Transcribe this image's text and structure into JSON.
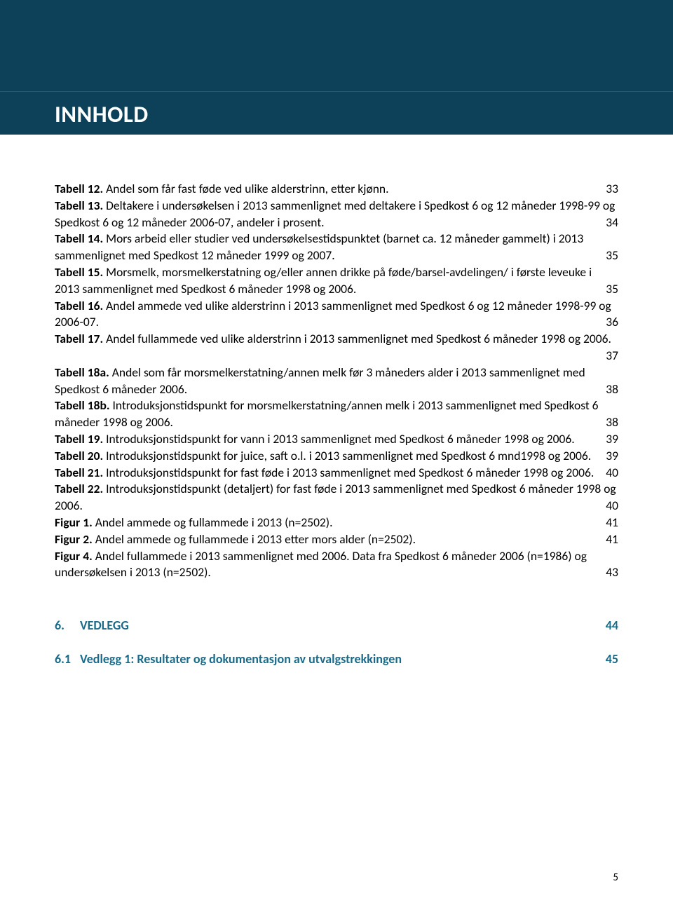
{
  "colors": {
    "header_bg": "#0d4159",
    "header_line": "#265a70",
    "text": "#000000",
    "accent": "#1a6a89",
    "page_bg": "#ffffff"
  },
  "typography": {
    "body_family": "Calibri, Arial, sans-serif",
    "body_size_pt": 13,
    "header_size_pt": 25,
    "line_height": 1.36
  },
  "header": {
    "title": "INNHOLD"
  },
  "toc": [
    {
      "label": "Tabell 12.",
      "desc": " Andel som får fast føde ved ulike alderstrinn, etter kjønn.",
      "pg": "33"
    },
    {
      "label": "Tabell 13.",
      "desc": " Deltakere i undersøkelsen i 2013 sammenlignet med deltakere i Spedkost 6 og 12 måneder 1998-99 og Spedkost 6 og 12 måneder 2006-07, andeler i prosent.",
      "pg": "34"
    },
    {
      "label": "Tabell 14.",
      "desc": " Mors arbeid eller studier ved undersøkelsestidspunktet (barnet ca. 12 måneder gammelt) i 2013 sammenlignet med Spedkost 12 måneder 1999 og 2007.",
      "pg": "35"
    },
    {
      "label": "Tabell 15.",
      "desc": " Morsmelk, morsmelkerstatning og/eller annen drikke på føde/barsel-avdelingen/ i første leveuke i 2013 sammenlignet med Spedkost 6 måneder 1998 og 2006.",
      "pg": "35"
    },
    {
      "label": "Tabell 16.",
      "desc": " Andel ammede ved ulike alderstrinn i 2013 sammenlignet med Spedkost 6 og 12 måneder 1998-99 og 2006-07.",
      "pg": "36"
    },
    {
      "label": "Tabell 17.",
      "desc": " Andel fullammede ved ulike alderstrinn i 2013 sammenlignet med Spedkost 6 måneder 1998 og 2006.",
      "pg": "37"
    },
    {
      "label": "Tabell 18a.",
      "desc": " Andel som får morsmelkerstatning/annen melk før 3 måneders alder i 2013 sammenlignet med Spedkost 6 måneder 2006.",
      "pg": "38"
    },
    {
      "label": "Tabell 18b.",
      "desc": " Introduksjonstidspunkt for morsmelkerstatning/annen melk i 2013 sammenlignet med Spedkost 6 måneder 1998 og 2006.",
      "pg": "38"
    },
    {
      "label": "Tabell 19.",
      "desc": " Introduksjonstidspunkt for vann i 2013 sammenlignet med Spedkost 6 måneder 1998 og 2006.",
      "pg": "39"
    },
    {
      "label": "Tabell 20.",
      "desc": " Introduksjonstidspunkt for juice, saft o.l. i 2013 sammenlignet med Spedkost 6 mnd1998 og 2006.",
      "pg": "39"
    },
    {
      "label": "Tabell 21.",
      "desc": " Introduksjonstidspunkt for fast føde i 2013 sammenlignet med Spedkost 6 måneder 1998 og 2006.",
      "pg": "40"
    },
    {
      "label": "Tabell 22.",
      "desc": " Introduksjonstidspunkt (detaljert) for fast føde i 2013 sammenlignet med Spedkost 6 måneder 1998 og 2006.",
      "pg": "40"
    },
    {
      "label": "Figur 1.",
      "desc": " Andel ammede og fullammede i 2013 (n=2502).",
      "pg": "41"
    },
    {
      "label": "Figur 2.",
      "desc": " Andel ammede og fullammede i 2013 etter mors alder (n=2502).",
      "pg": "41"
    },
    {
      "label": "Figur 4.",
      "desc": " Andel fullammede i 2013 sammenlignet med 2006. Data fra Spedkost 6 måneder 2006 (n=1986) og undersøkelsen i 2013 (n=2502).",
      "pg": "43"
    }
  ],
  "section": {
    "num": "6.",
    "title": "VEDLEGG",
    "pg": "44"
  },
  "subsection": {
    "num": "6.1",
    "title": "Vedlegg 1: Resultater og dokumentasjon av utvalgstrekkingen",
    "pg": "45"
  },
  "page_number": "5"
}
